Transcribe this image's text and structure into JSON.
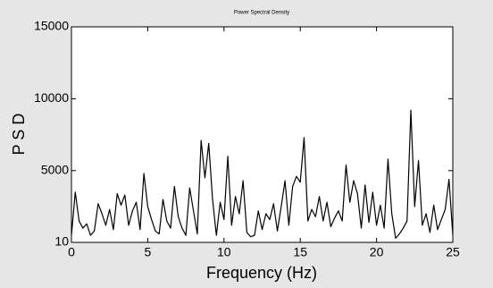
{
  "chart_data": {
    "type": "line",
    "title": "Power Spectral Density",
    "xlabel": "Frequency (Hz)",
    "ylabel": "P S D",
    "x": [
      0,
      0.25,
      0.5,
      0.75,
      1,
      1.25,
      1.5,
      1.75,
      2,
      2.25,
      2.5,
      2.75,
      3,
      3.25,
      3.5,
      3.75,
      4,
      4.25,
      4.5,
      4.75,
      5,
      5.25,
      5.5,
      5.75,
      6,
      6.25,
      6.5,
      6.75,
      7,
      7.25,
      7.5,
      7.75,
      8,
      8.25,
      8.5,
      8.75,
      9,
      9.25,
      9.5,
      9.75,
      10,
      10.25,
      10.5,
      10.75,
      11,
      11.25,
      11.5,
      11.75,
      12,
      12.25,
      12.5,
      12.75,
      13,
      13.25,
      13.5,
      13.75,
      14,
      14.25,
      14.5,
      14.75,
      15,
      15.25,
      15.5,
      15.75,
      16,
      16.25,
      16.5,
      16.75,
      17,
      17.25,
      17.5,
      17.75,
      18,
      18.25,
      18.5,
      18.75,
      19,
      19.25,
      19.5,
      19.75,
      20,
      20.25,
      20.5,
      20.75,
      21,
      21.25,
      21.5,
      21.75,
      22,
      22.25,
      22.5,
      22.75,
      23,
      23.25,
      23.5,
      23.75,
      24,
      24.25,
      24.5,
      24.75,
      25
    ],
    "series": [
      {
        "name": "PSD",
        "color": "#000000",
        "values": [
          500,
          3500,
          1500,
          1000,
          1300,
          500,
          800,
          2700,
          2000,
          1200,
          2300,
          900,
          3400,
          2600,
          3300,
          1200,
          2200,
          2800,
          900,
          4800,
          2500,
          1600,
          800,
          600,
          3000,
          1500,
          1000,
          3900,
          1800,
          1000,
          500,
          3800,
          2200,
          600,
          7100,
          4500,
          6900,
          3000,
          500,
          2800,
          1600,
          6000,
          1200,
          3200,
          2000,
          4300,
          700,
          400,
          500,
          2200,
          900,
          2000,
          1600,
          2700,
          800,
          2500,
          4300,
          1200,
          3900,
          4600,
          4200,
          7300,
          1500,
          2300,
          1800,
          3200,
          1500,
          2800,
          1100,
          1700,
          2200,
          1500,
          5400,
          2800,
          4300,
          3400,
          1000,
          4000,
          1400,
          3500,
          1200,
          2600,
          1000,
          5800,
          2000,
          300,
          600,
          1000,
          1500,
          9200,
          2500,
          5700,
          1200,
          2000,
          700,
          2600,
          900,
          1600,
          2300,
          4400,
          500
        ]
      }
    ],
    "xlim": [
      0,
      25
    ],
    "xticks": [
      0,
      5,
      10,
      15,
      20,
      25
    ],
    "ylim": [
      10,
      15000
    ],
    "yticks": [
      10,
      5000,
      10000,
      15000
    ],
    "grid": false
  }
}
